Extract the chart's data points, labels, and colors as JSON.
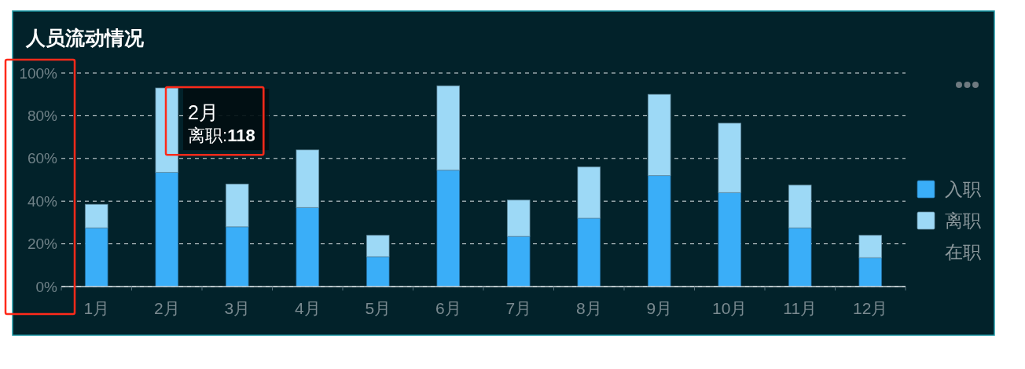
{
  "chart_data": {
    "type": "bar",
    "title": "人员流动情况",
    "categories": [
      "1月",
      "2月",
      "3月",
      "4月",
      "5月",
      "6月",
      "7月",
      "8月",
      "9月",
      "10月",
      "11月",
      "12月"
    ],
    "series": [
      {
        "name": "入职",
        "color": "#3aaef8",
        "values": [
          27.5,
          53.5,
          28,
          37,
          14,
          54.5,
          23.5,
          32,
          52,
          44,
          27.5,
          13.5
        ]
      },
      {
        "name": "离职",
        "color": "#9dd9f6",
        "values": [
          11,
          39.5,
          20,
          27,
          10,
          39.5,
          17,
          24,
          38,
          32.5,
          20,
          10.5
        ]
      },
      {
        "name": "在职",
        "values": [
          null,
          null,
          null,
          null,
          null,
          null,
          null,
          null,
          null,
          null,
          null,
          null
        ]
      }
    ],
    "stacked": true,
    "ylim": [
      0,
      100
    ],
    "yticks": [
      {
        "value": 0,
        "label": "0%"
      },
      {
        "value": 20,
        "label": "20%"
      },
      {
        "value": 40,
        "label": "40%"
      },
      {
        "value": 60,
        "label": "60%"
      },
      {
        "value": 80,
        "label": "80%"
      },
      {
        "value": 100,
        "label": "100%"
      }
    ],
    "grid": "y",
    "legend": "right",
    "annotations": [
      "2月",
      "离职:118"
    ]
  }
}
